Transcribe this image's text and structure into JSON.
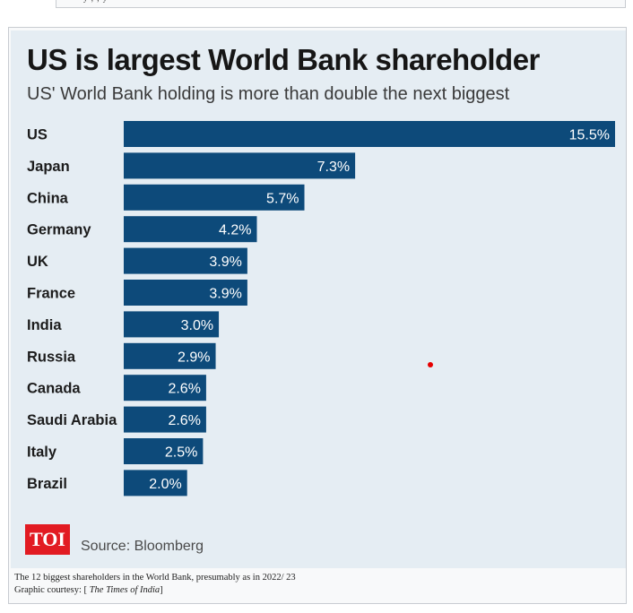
{
  "chart_data": {
    "type": "bar",
    "orientation": "horizontal",
    "title": "US is largest World Bank shareholder",
    "subtitle": "US' World Bank holding is more than double the next biggest",
    "categories": [
      "US",
      "Japan",
      "China",
      "Germany",
      "UK",
      "France",
      "India",
      "Russia",
      "Canada",
      "Saudi Arabia",
      "Italy",
      "Brazil"
    ],
    "values": [
      15.5,
      7.3,
      5.7,
      4.2,
      3.9,
      3.9,
      3.0,
      2.9,
      2.6,
      2.6,
      2.5,
      2.0
    ],
    "value_labels": [
      "15.5%",
      "7.3%",
      "5.7%",
      "4.2%",
      "3.9%",
      "3.9%",
      "3.0%",
      "2.9%",
      "2.6%",
      "2.6%",
      "2.5%",
      "2.0%"
    ],
    "bar_color": "#0d4a7a",
    "background_color": "#e5edf3",
    "xlim": [
      0,
      15.5
    ],
    "grid": false,
    "source": "Source: Bloomberg"
  },
  "logo": {
    "text": "TOI",
    "color": "#e21b22"
  },
  "caption": {
    "line1": "The 12 biggest shareholders in the World Bank, presumably as in 2022/ 23",
    "line2_prefix": "Graphic courtesy: [",
    "line2_italic": "The Times of India",
    "line2_suffix": "]"
  }
}
